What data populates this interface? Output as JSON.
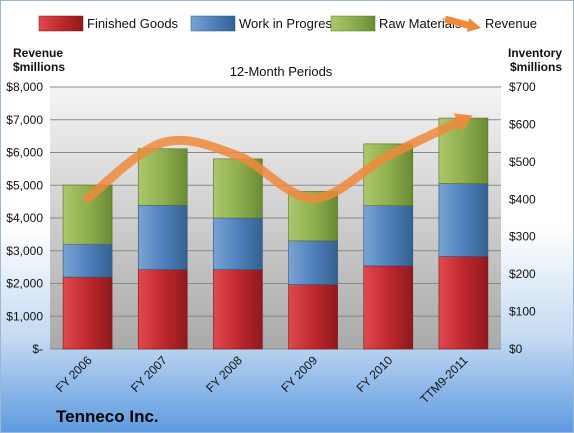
{
  "chart_data": {
    "type": "bar",
    "stacked": true,
    "title": "12-Month Periods",
    "company": "Tenneco Inc.",
    "categories": [
      "FY 2006",
      "FY 2007",
      "FY 2008",
      "FY 2009",
      "FY 2010",
      "TTM9-2011"
    ],
    "series": [
      {
        "name": "Finished Goods",
        "axis": "right",
        "color": "#c0282d",
        "values": [
          192,
          212,
          212,
          172,
          222,
          247
        ]
      },
      {
        "name": "Work in Progress",
        "axis": "right",
        "color": "#4f81bd",
        "values": [
          88,
          172,
          138,
          117,
          161,
          195
        ]
      },
      {
        "name": "Raw Materials",
        "axis": "right",
        "color": "#8fb04f",
        "values": [
          158,
          151,
          158,
          132,
          165,
          175
        ]
      }
    ],
    "line_series": {
      "name": "Revenue",
      "axis": "left",
      "color": "#f0883a",
      "values": [
        4600,
        6300,
        5900,
        4600,
        5900,
        7000
      ]
    },
    "left_axis": {
      "label_line1": "Revenue",
      "label_line2": "$millions",
      "ylim": [
        0,
        8000
      ],
      "ticks": [
        0,
        1000,
        2000,
        3000,
        4000,
        5000,
        6000,
        7000,
        8000
      ],
      "tick_labels": [
        "$-",
        "$1,000",
        "$2,000",
        "$3,000",
        "$4,000",
        "$5,000",
        "$6,000",
        "$7,000",
        "$8,000"
      ]
    },
    "right_axis": {
      "label_line1": "Inventory",
      "label_line2": "$millions",
      "ylim": [
        0,
        700
      ],
      "ticks": [
        0,
        100,
        200,
        300,
        400,
        500,
        600,
        700
      ],
      "tick_labels": [
        "$0",
        "$100",
        "$200",
        "$300",
        "$400",
        "$500",
        "$600",
        "$700"
      ]
    },
    "grid": true,
    "legend_position": "top"
  }
}
